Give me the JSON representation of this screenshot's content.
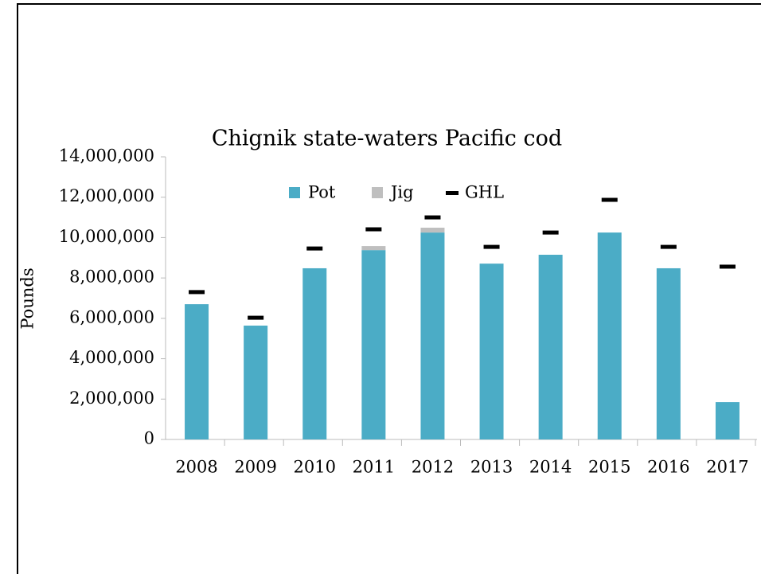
{
  "chart_data": {
    "type": "bar",
    "stacked": true,
    "title": "Chignik state-waters Pacific cod",
    "y_label": "Pounds",
    "categories": [
      "2008",
      "2009",
      "2010",
      "2011",
      "2012",
      "2013",
      "2014",
      "2015",
      "2016",
      "2017"
    ],
    "series": [
      {
        "name": "Pot",
        "color": "#4bacc6",
        "values": [
          6700000,
          5640000,
          8480000,
          9380000,
          10250000,
          8710000,
          9150000,
          10250000,
          8480000,
          1850000
        ]
      },
      {
        "name": "Jig",
        "color": "#bfbfbf",
        "values": [
          0,
          0,
          0,
          200000,
          240000,
          0,
          0,
          0,
          0,
          0
        ]
      },
      {
        "name": "GHL",
        "color": "#000000",
        "type": "marker",
        "values": [
          7300000,
          6030000,
          9460000,
          10410000,
          11000000,
          9540000,
          10250000,
          11870000,
          9540000,
          8560000
        ]
      }
    ],
    "ylim": [
      0,
      14000000
    ],
    "yticks": [
      0,
      {
        "value": 2000000,
        "label": "2,000,000"
      },
      {
        "value": 4000000,
        "label": "4,000,000"
      },
      {
        "value": 6000000,
        "label": "6,000,000"
      },
      {
        "value": 8000000,
        "label": "8,000,000"
      },
      {
        "value": 10000000,
        "label": "10,000,000"
      },
      {
        "value": 12000000,
        "label": "12,000,000"
      },
      {
        "value": 14000000,
        "label": "14,000,000"
      }
    ],
    "grid": false
  }
}
